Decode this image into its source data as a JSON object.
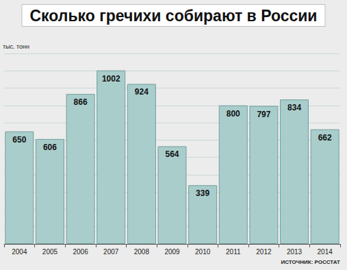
{
  "chart_data": {
    "type": "bar",
    "title": "Сколько гречихи собирают в России",
    "ylabel": "тыс. тонн",
    "annotations": [
      {
        "text": "ИСТОЧНИК: РОССТАТ"
      }
    ],
    "categories": [
      "2004",
      "2005",
      "2006",
      "2007",
      "2008",
      "2009",
      "2010",
      "2011",
      "2012",
      "2013",
      "2014"
    ],
    "values": [
      650,
      606,
      866,
      1002,
      924,
      564,
      339,
      800,
      797,
      834,
      662
    ],
    "color": "#a9cdcb",
    "ylim": [
      0,
      1100
    ],
    "yticks": [
      0,
      100,
      200,
      300,
      400,
      500,
      600,
      700,
      800,
      900,
      1000,
      1100
    ],
    "grid": true,
    "data_labels": true,
    "tick_labels": "x"
  }
}
